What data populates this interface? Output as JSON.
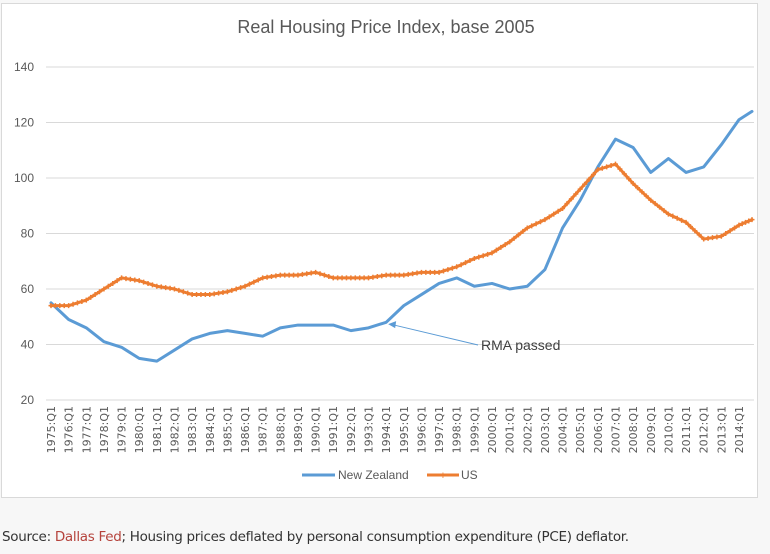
{
  "chart_data": {
    "type": "line",
    "title": "Real Housing Price Index, base 2005",
    "xlabel": "",
    "ylabel": "",
    "ylim": [
      20,
      140
    ],
    "yticks": [
      20,
      40,
      60,
      80,
      100,
      120,
      140
    ],
    "grid": true,
    "legend_position": "bottom",
    "x": [
      "1975:Q1",
      "1976:Q1",
      "1977:Q1",
      "1978:Q1",
      "1979:Q1",
      "1980:Q1",
      "1981:Q1",
      "1982:Q1",
      "1983:Q1",
      "1984:Q1",
      "1985:Q1",
      "1986:Q1",
      "1987:Q1",
      "1988:Q1",
      "1989:Q1",
      "1990:Q1",
      "1991:Q1",
      "1992:Q1",
      "1993:Q1",
      "1994:Q1",
      "1995:Q1",
      "1996:Q1",
      "1997:Q1",
      "1998:Q1",
      "1999:Q1",
      "2000:Q1",
      "2001:Q1",
      "2002:Q1",
      "2003:Q1",
      "2004:Q1",
      "2005:Q1",
      "2006:Q1",
      "2007:Q1",
      "2008:Q1",
      "2009:Q1",
      "2010:Q1",
      "2011:Q1",
      "2012:Q1",
      "2013:Q1",
      "2014:Q1"
    ],
    "series": [
      {
        "name": "New Zealand",
        "color": "#5b9bd5",
        "marker": "none",
        "values": [
          55,
          49,
          46,
          41,
          39,
          35,
          34,
          38,
          42,
          44,
          45,
          44,
          43,
          46,
          47,
          47,
          47,
          45,
          46,
          48,
          54,
          58,
          62,
          64,
          61,
          62,
          60,
          61,
          67,
          82,
          92,
          104,
          114,
          111,
          102,
          107,
          102,
          104,
          112,
          121
        ],
        "last_value": 124
      },
      {
        "name": "US",
        "color": "#ed7d31",
        "marker": "plus",
        "values": [
          54,
          54,
          56,
          60,
          64,
          63,
          61,
          60,
          58,
          58,
          59,
          61,
          64,
          65,
          65,
          66,
          64,
          64,
          64,
          65,
          65,
          66,
          66,
          68,
          71,
          73,
          77,
          82,
          85,
          89,
          96,
          103,
          105,
          98,
          92,
          87,
          84,
          78,
          79,
          83
        ],
        "last_value": 85
      }
    ],
    "annotations": [
      {
        "text": "RMA passed",
        "points_to": {
          "series": "New Zealand",
          "x": "1994:Q1",
          "y": 47
        }
      }
    ]
  },
  "caption": {
    "prefix": "Source: ",
    "link_text": "Dallas Fed",
    "suffix": "; Housing prices deflated by personal consumption expenditure (PCE) deflator."
  }
}
